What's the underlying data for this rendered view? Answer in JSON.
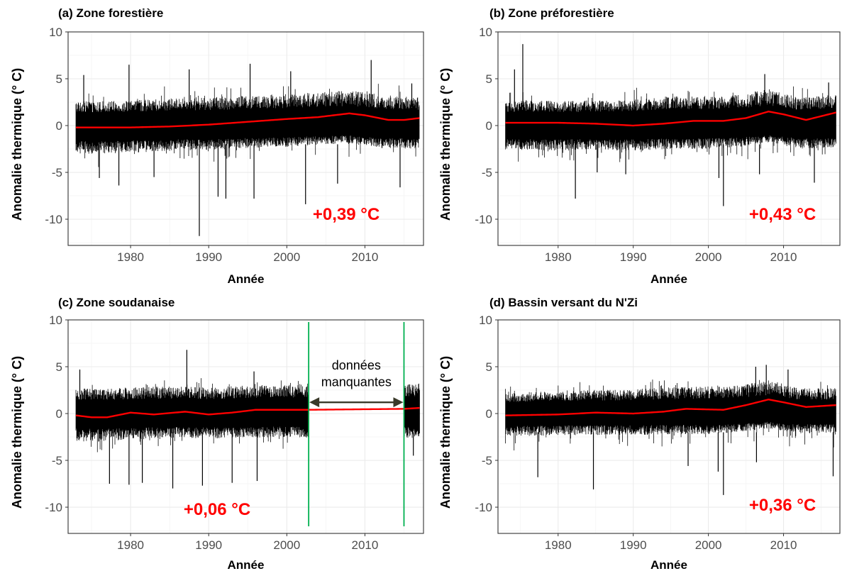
{
  "colors": {
    "series": "#000000",
    "trend_line": "#ff0000",
    "trend_text": "#ff0000",
    "grid": "#ebebeb",
    "gap_marker": "#00b050",
    "arrow": "#3a3a2a"
  },
  "chart_data": [
    {
      "type": "line",
      "title": "(a) Zone forestière",
      "xlabel": "Année",
      "ylabel": "Anomalie thermique (° C)",
      "xlim": [
        1972,
        2017.5
      ],
      "ylim": [
        -12.8,
        10
      ],
      "x_ticks": [
        1980,
        1990,
        2000,
        2010
      ],
      "y_ticks": [
        10,
        5,
        0,
        -5,
        -10
      ],
      "grid": true,
      "trend_label": "+0,39 °C",
      "envelope": {
        "x": [
          1973,
          1976,
          1980,
          1985,
          1990,
          1995,
          2000,
          2005,
          2008,
          2012,
          2017
        ],
        "upper": [
          2.6,
          2.6,
          2.7,
          2.9,
          3.0,
          3.2,
          3.4,
          3.6,
          3.8,
          3.3,
          3.0
        ],
        "lower": [
          -3.0,
          -3.0,
          -2.9,
          -2.7,
          -2.6,
          -2.4,
          -2.3,
          -2.0,
          -1.9,
          -2.4,
          -2.5
        ]
      },
      "smooth": {
        "x": [
          1973,
          1980,
          1985,
          1990,
          1995,
          2000,
          2004,
          2008,
          2010,
          2013,
          2015,
          2017
        ],
        "y": [
          -0.2,
          -0.2,
          -0.1,
          0.1,
          0.4,
          0.7,
          0.9,
          1.3,
          1.1,
          0.6,
          0.6,
          0.8
        ]
      },
      "extremes": [
        {
          "x": 1974,
          "y": 5.4
        },
        {
          "x": 1979.8,
          "y": 6.5
        },
        {
          "x": 1987.5,
          "y": 6.0
        },
        {
          "x": 1995.3,
          "y": 6.6
        },
        {
          "x": 2000.5,
          "y": 5.8
        },
        {
          "x": 2010.8,
          "y": 7.0
        },
        {
          "x": 2016,
          "y": 4.5
        },
        {
          "x": 1976,
          "y": -5.6
        },
        {
          "x": 1978.5,
          "y": -6.4
        },
        {
          "x": 1983,
          "y": -5.5
        },
        {
          "x": 1988.8,
          "y": -11.8
        },
        {
          "x": 1991.2,
          "y": -7.6
        },
        {
          "x": 1992.2,
          "y": -7.8
        },
        {
          "x": 1995.8,
          "y": -7.8
        },
        {
          "x": 2002.4,
          "y": -8.4
        },
        {
          "x": 2006.5,
          "y": -6.2
        },
        {
          "x": 2014.5,
          "y": -6.6
        }
      ]
    },
    {
      "type": "line",
      "title": "(b) Zone préforestière",
      "xlabel": "Année",
      "ylabel": "Anomalie thermique (° C)",
      "xlim": [
        1972,
        2017.5
      ],
      "ylim": [
        -12.8,
        10
      ],
      "x_ticks": [
        1980,
        1990,
        2000,
        2010
      ],
      "y_ticks": [
        10,
        5,
        0,
        -5,
        -10
      ],
      "grid": true,
      "trend_label": "+0,43 °C",
      "envelope": {
        "x": [
          1973,
          1976,
          1980,
          1985,
          1990,
          1995,
          2000,
          2004,
          2008,
          2012,
          2017
        ],
        "upper": [
          2.6,
          2.7,
          2.6,
          2.7,
          2.8,
          3.2,
          3.1,
          3.3,
          3.9,
          3.0,
          3.4
        ],
        "lower": [
          -2.6,
          -2.6,
          -2.7,
          -2.6,
          -2.7,
          -2.5,
          -2.5,
          -2.3,
          -1.8,
          -2.5,
          -2.3
        ]
      },
      "smooth": {
        "x": [
          1973,
          1980,
          1985,
          1990,
          1994,
          1998,
          2002,
          2005,
          2008,
          2010,
          2013,
          2017
        ],
        "y": [
          0.3,
          0.3,
          0.2,
          0.0,
          0.2,
          0.5,
          0.5,
          0.8,
          1.5,
          1.2,
          0.6,
          1.4
        ]
      },
      "extremes": [
        {
          "x": 1974.2,
          "y": 6.0
        },
        {
          "x": 1975.3,
          "y": 8.7
        },
        {
          "x": 1982.3,
          "y": -7.8
        },
        {
          "x": 1985.2,
          "y": -5.0
        },
        {
          "x": 1989,
          "y": -5.2
        },
        {
          "x": 2001.4,
          "y": -5.6
        },
        {
          "x": 2002,
          "y": -8.6
        },
        {
          "x": 2006.8,
          "y": -5.2
        },
        {
          "x": 2014.1,
          "y": -6.1
        },
        {
          "x": 2016,
          "y": 4.6
        },
        {
          "x": 2007.5,
          "y": 5.5
        }
      ]
    },
    {
      "type": "line",
      "title": "(c) Zone soudanaise",
      "xlabel": "Année",
      "ylabel": "Anomalie thermique (° C)",
      "xlim": [
        1972,
        2017.5
      ],
      "ylim": [
        -12.8,
        10
      ],
      "x_ticks": [
        1980,
        1990,
        2000,
        2010
      ],
      "y_ticks": [
        10,
        5,
        0,
        -5,
        -10
      ],
      "grid": true,
      "trend_label": "+0,06 °C",
      "annotation": "données manquantes",
      "missing_interval": [
        2002.8,
        2015
      ],
      "segments": [
        [
          1973,
          2002.8
        ],
        [
          2015,
          2017
        ]
      ],
      "envelope": {
        "x": [
          1973,
          1976,
          1980,
          1985,
          1990,
          1995,
          2000,
          2002.8
        ],
        "upper": [
          2.7,
          2.6,
          2.8,
          2.9,
          2.8,
          3.0,
          3.1,
          3.2
        ],
        "lower": [
          -2.9,
          -3.0,
          -2.8,
          -2.6,
          -2.7,
          -2.6,
          -2.5,
          -2.6
        ]
      },
      "smooth": {
        "x": [
          1973,
          1975,
          1977,
          1980,
          1983,
          1987,
          1990,
          1993,
          1996,
          2002.8,
          2015,
          2017
        ],
        "y": [
          -0.2,
          -0.4,
          -0.4,
          0.1,
          -0.1,
          0.2,
          -0.1,
          0.1,
          0.4,
          0.4,
          0.5,
          0.6
        ]
      },
      "extremes": [
        {
          "x": 1973.5,
          "y": 4.7
        },
        {
          "x": 1987.2,
          "y": 6.8
        },
        {
          "x": 1995.8,
          "y": 4.5
        },
        {
          "x": 1977.3,
          "y": -7.5
        },
        {
          "x": 1979.8,
          "y": -7.6
        },
        {
          "x": 1981.5,
          "y": -7.4
        },
        {
          "x": 1985.4,
          "y": -8.0
        },
        {
          "x": 1989.2,
          "y": -7.7
        },
        {
          "x": 1993,
          "y": -7.4
        },
        {
          "x": 1996.2,
          "y": -7.2
        },
        {
          "x": 2016.2,
          "y": -4.5
        }
      ]
    },
    {
      "type": "line",
      "title": "(d) Bassin versant du N'Zi",
      "xlabel": "Année",
      "ylabel": "Anomalie thermique (° C)",
      "xlim": [
        1972,
        2017.5
      ],
      "ylim": [
        -12.8,
        10
      ],
      "x_ticks": [
        1980,
        1990,
        2000,
        2010
      ],
      "y_ticks": [
        10,
        5,
        0,
        -5,
        -10
      ],
      "grid": true,
      "trend_label": "+0,36 °C",
      "envelope": {
        "x": [
          1973,
          1976,
          1980,
          1985,
          1990,
          1995,
          2000,
          2004,
          2008,
          2012,
          2017
        ],
        "upper": [
          2.2,
          2.3,
          2.4,
          2.5,
          2.6,
          2.8,
          2.9,
          3.0,
          3.6,
          2.7,
          2.7
        ],
        "lower": [
          -2.4,
          -2.4,
          -2.3,
          -2.3,
          -2.3,
          -2.2,
          -2.2,
          -2.0,
          -1.6,
          -2.1,
          -2.1
        ]
      },
      "smooth": {
        "x": [
          1973,
          1980,
          1985,
          1990,
          1994,
          1997,
          2002,
          2005,
          2008,
          2010,
          2013,
          2017
        ],
        "y": [
          -0.2,
          -0.1,
          0.1,
          0.0,
          0.2,
          0.5,
          0.4,
          0.9,
          1.5,
          1.2,
          0.7,
          0.9
        ]
      },
      "extremes": [
        {
          "x": 1977.3,
          "y": -6.8
        },
        {
          "x": 1984.7,
          "y": -8.1
        },
        {
          "x": 1997.3,
          "y": -5.6
        },
        {
          "x": 2001.3,
          "y": -6.2
        },
        {
          "x": 2002,
          "y": -8.7
        },
        {
          "x": 2006.4,
          "y": -5.2
        },
        {
          "x": 2016.6,
          "y": -6.7
        },
        {
          "x": 2006.3,
          "y": 5.0
        },
        {
          "x": 2007.7,
          "y": 5.2
        },
        {
          "x": 2010.6,
          "y": 4.7
        }
      ]
    }
  ]
}
